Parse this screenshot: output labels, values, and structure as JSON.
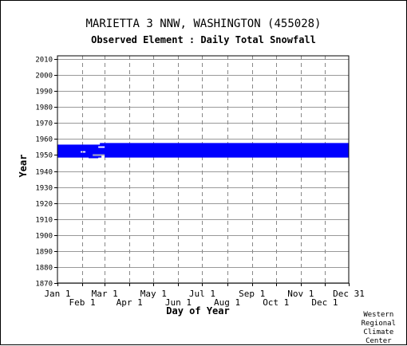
{
  "header": {
    "title": "MARIETTA 3 NNW, WASHINGTON   (455028)",
    "subtitle": "Observed Element : Daily Total Snowfall"
  },
  "credit": "Western\nRegional\nClimate\nCenter",
  "chart_data": {
    "type": "heatmap",
    "title": "MARIETTA 3 NNW, WASHINGTON   (455028)",
    "subtitle": "Observed Element : Daily Total Snowfall",
    "xlabel": "Day of Year",
    "ylabel": "Year",
    "xlim": [
      1,
      365
    ],
    "ylim": [
      1870,
      2012
    ],
    "grid": true,
    "colors": {
      "data": "#0000ff",
      "grid_solid": "#999999",
      "grid_dashed": "#888888"
    },
    "x_ticks_top_row": [
      {
        "label": "Jan 1",
        "day": 1
      },
      {
        "label": "Mar 1",
        "day": 60
      },
      {
        "label": "May 1",
        "day": 121
      },
      {
        "label": "Jul 1",
        "day": 182
      },
      {
        "label": "Sep 1",
        "day": 244
      },
      {
        "label": "Nov 1",
        "day": 305
      },
      {
        "label": "Dec 31",
        "day": 365
      }
    ],
    "x_ticks_bottom_row": [
      {
        "label": "Feb 1",
        "day": 32
      },
      {
        "label": "Apr 1",
        "day": 91
      },
      {
        "label": "Jun 1",
        "day": 152
      },
      {
        "label": "Aug 1",
        "day": 213
      },
      {
        "label": "Oct 1",
        "day": 274
      },
      {
        "label": "Dec 1",
        "day": 335
      }
    ],
    "y_ticks": [
      1870,
      1880,
      1890,
      1900,
      1910,
      1920,
      1930,
      1940,
      1950,
      1960,
      1970,
      1980,
      1990,
      2000,
      2010
    ],
    "coverage": [
      {
        "year": 1948.6,
        "start": 40,
        "end": 52
      },
      {
        "year": 1949,
        "start": 1,
        "end": 56
      },
      {
        "year": 1949,
        "start": 60,
        "end": 365
      },
      {
        "year": 1950,
        "start": 1,
        "end": 45
      },
      {
        "year": 1950,
        "start": 60,
        "end": 365
      },
      {
        "year": 1951,
        "start": 1,
        "end": 365
      },
      {
        "year": 1952,
        "start": 1,
        "end": 30
      },
      {
        "year": 1952,
        "start": 36,
        "end": 365
      },
      {
        "year": 1953,
        "start": 1,
        "end": 365
      },
      {
        "year": 1954,
        "start": 1,
        "end": 365
      },
      {
        "year": 1955,
        "start": 1,
        "end": 52
      },
      {
        "year": 1955,
        "start": 60,
        "end": 365
      },
      {
        "year": 1956,
        "start": 1,
        "end": 365
      },
      {
        "year": 1957,
        "start": 54,
        "end": 365
      }
    ]
  }
}
